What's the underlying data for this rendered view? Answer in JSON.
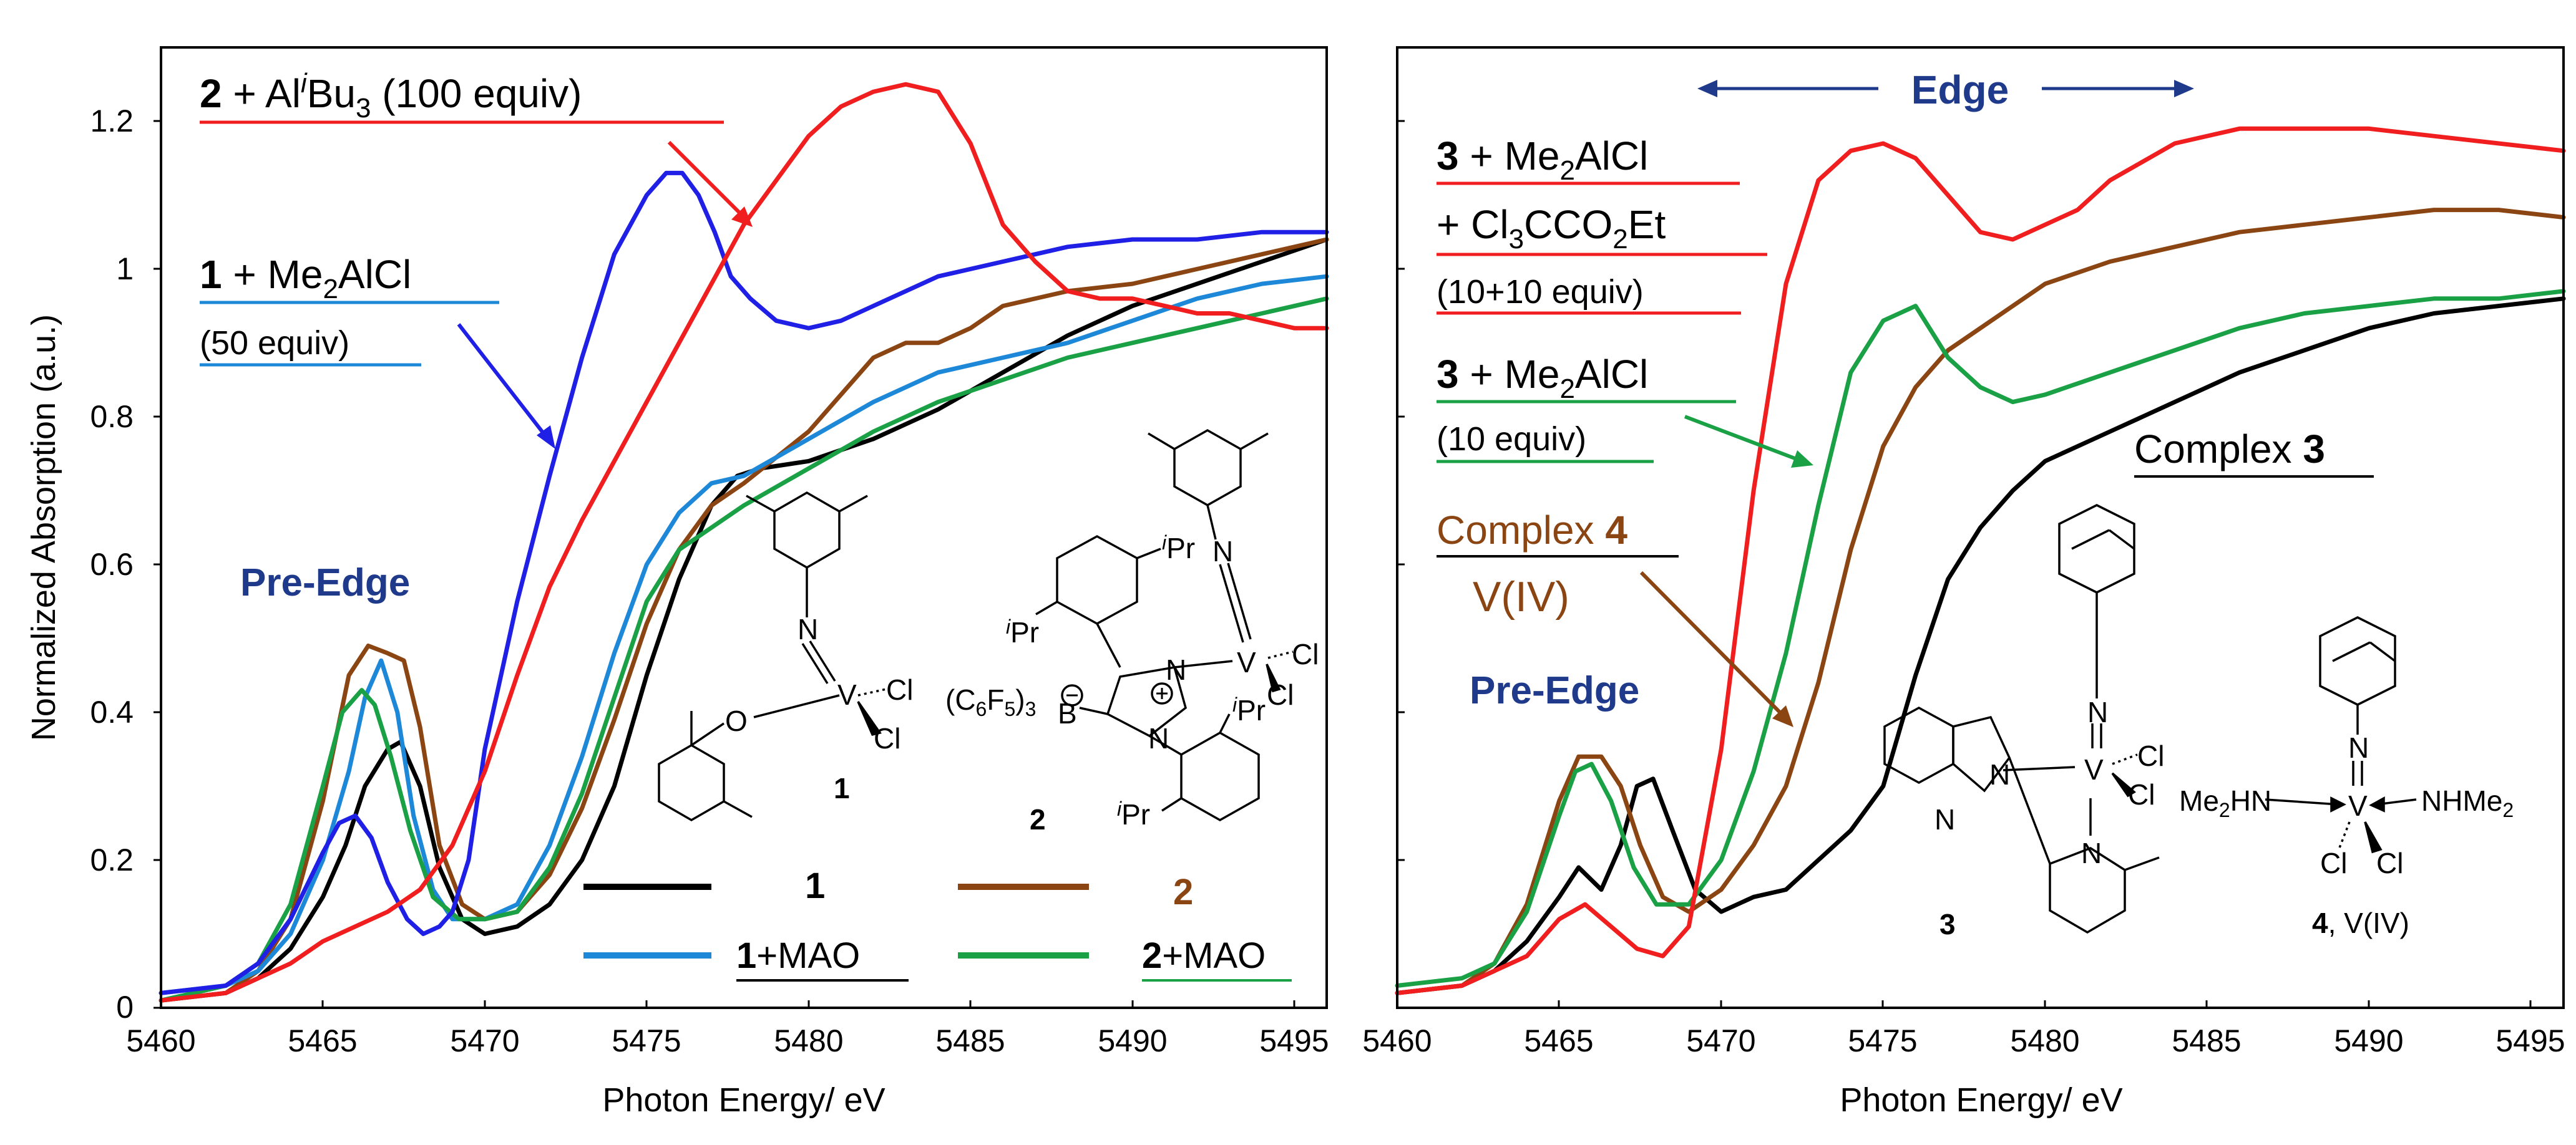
{
  "chart_data": [
    {
      "type": "line",
      "panel": "left",
      "xlabel": "Photon Energy/ eV",
      "ylabel": "Normalized Absorption (a.u.)",
      "xlim": [
        5460,
        5496
      ],
      "ylim": [
        0,
        1.3
      ],
      "xticks": [
        5460,
        5465,
        5470,
        5475,
        5480,
        5485,
        5490,
        5495
      ],
      "yticks": [
        0,
        0.2,
        0.4,
        0.6,
        0.8,
        1,
        1.2
      ],
      "colors": {
        "s1": "#000000",
        "s2": "#8b4513",
        "s1mao": "#1e88d8",
        "s2mao": "#1aa045",
        "s1al": "#1f1fe6",
        "s2al": "#f01e1e",
        "text_blue": "#1f3a8a"
      },
      "series": [
        {
          "name": "1",
          "color": "#000000",
          "x": [
            5460,
            5462,
            5463,
            5464,
            5465,
            5465.7,
            5466.3,
            5467,
            5467.4,
            5468,
            5468.6,
            5469.3,
            5470,
            5471,
            5472,
            5473,
            5474,
            5475,
            5476,
            5477,
            5477.8,
            5478.5,
            5480,
            5482,
            5484,
            5486,
            5488,
            5490,
            5492,
            5494,
            5496
          ],
          "y": [
            0.01,
            0.02,
            0.04,
            0.08,
            0.15,
            0.22,
            0.3,
            0.35,
            0.36,
            0.3,
            0.19,
            0.12,
            0.1,
            0.11,
            0.14,
            0.2,
            0.3,
            0.45,
            0.58,
            0.68,
            0.72,
            0.73,
            0.74,
            0.77,
            0.81,
            0.86,
            0.91,
            0.95,
            0.98,
            1.01,
            1.04
          ]
        },
        {
          "name": "2",
          "color": "#8b4513",
          "x": [
            5460,
            5462,
            5463,
            5464,
            5465,
            5465.8,
            5466.4,
            5467,
            5467.5,
            5468,
            5468.6,
            5469.3,
            5470,
            5471,
            5472,
            5473,
            5474,
            5475,
            5476,
            5477,
            5478,
            5480,
            5482,
            5483,
            5484,
            5485,
            5486,
            5488,
            5490,
            5492,
            5494,
            5496
          ],
          "y": [
            0.01,
            0.02,
            0.05,
            0.12,
            0.28,
            0.45,
            0.49,
            0.48,
            0.47,
            0.38,
            0.22,
            0.14,
            0.12,
            0.13,
            0.18,
            0.27,
            0.39,
            0.52,
            0.62,
            0.68,
            0.71,
            0.78,
            0.88,
            0.9,
            0.9,
            0.92,
            0.95,
            0.97,
            0.98,
            1,
            1.02,
            1.04
          ]
        },
        {
          "name": "1+MAO",
          "color": "#1e88d8",
          "x": [
            5460,
            5462,
            5463,
            5464,
            5465,
            5465.8,
            5466.3,
            5466.8,
            5467.3,
            5467.8,
            5468.4,
            5469,
            5470,
            5471,
            5472,
            5473,
            5474,
            5475,
            5476,
            5477,
            5478,
            5480,
            5482,
            5484,
            5486,
            5488,
            5490,
            5492,
            5494,
            5496
          ],
          "y": [
            0.02,
            0.03,
            0.05,
            0.1,
            0.2,
            0.32,
            0.42,
            0.47,
            0.4,
            0.26,
            0.16,
            0.12,
            0.12,
            0.14,
            0.22,
            0.34,
            0.48,
            0.6,
            0.67,
            0.71,
            0.72,
            0.77,
            0.82,
            0.86,
            0.88,
            0.9,
            0.93,
            0.96,
            0.98,
            0.99
          ]
        },
        {
          "name": "2+MAO",
          "color": "#1aa045",
          "x": [
            5460,
            5462,
            5463,
            5464,
            5465,
            5465.6,
            5466.2,
            5466.6,
            5467.1,
            5467.7,
            5468.4,
            5469.2,
            5470,
            5471,
            5472,
            5473,
            5474,
            5475,
            5476,
            5477,
            5478,
            5480,
            5482,
            5484,
            5486,
            5488,
            5490,
            5492,
            5494,
            5496
          ],
          "y": [
            0.01,
            0.03,
            0.06,
            0.14,
            0.3,
            0.4,
            0.43,
            0.41,
            0.34,
            0.24,
            0.15,
            0.12,
            0.12,
            0.13,
            0.19,
            0.29,
            0.42,
            0.55,
            0.62,
            0.65,
            0.68,
            0.73,
            0.78,
            0.82,
            0.85,
            0.88,
            0.9,
            0.92,
            0.94,
            0.96
          ]
        },
        {
          "name": "1 + Me2AlCl (50 equiv)",
          "color": "#1f1fe6",
          "x": [
            5460,
            5462,
            5463,
            5464,
            5465,
            5465.5,
            5466,
            5466.5,
            5467,
            5467.6,
            5468.1,
            5468.6,
            5469,
            5469.5,
            5470,
            5471,
            5472,
            5473,
            5474,
            5475,
            5475.6,
            5476.1,
            5476.6,
            5477.1,
            5477.6,
            5478.2,
            5479,
            5480,
            5481,
            5482,
            5484,
            5486,
            5488,
            5490,
            5492,
            5494,
            5496
          ],
          "y": [
            0.02,
            0.03,
            0.06,
            0.12,
            0.21,
            0.25,
            0.26,
            0.23,
            0.17,
            0.12,
            0.1,
            0.11,
            0.13,
            0.2,
            0.35,
            0.55,
            0.72,
            0.88,
            1.02,
            1.1,
            1.13,
            1.13,
            1.1,
            1.05,
            0.99,
            0.96,
            0.93,
            0.92,
            0.93,
            0.95,
            0.99,
            1.01,
            1.03,
            1.04,
            1.04,
            1.05,
            1.05
          ]
        },
        {
          "name": "2 + AliBu3 (100 equiv)",
          "color": "#f01e1e",
          "x": [
            5460,
            5462,
            5464,
            5465,
            5466,
            5467,
            5468,
            5469,
            5470,
            5471,
            5472,
            5473,
            5474,
            5475,
            5476,
            5477,
            5478,
            5479,
            5480,
            5480.5,
            5481,
            5482,
            5483,
            5484,
            5485,
            5486,
            5487,
            5488,
            5489,
            5490,
            5491,
            5492,
            5493,
            5494,
            5495,
            5496
          ],
          "y": [
            0.01,
            0.02,
            0.06,
            0.09,
            0.11,
            0.13,
            0.16,
            0.22,
            0.32,
            0.45,
            0.57,
            0.66,
            0.74,
            0.82,
            0.9,
            0.98,
            1.06,
            1.12,
            1.18,
            1.2,
            1.22,
            1.24,
            1.25,
            1.24,
            1.17,
            1.06,
            1.01,
            0.97,
            0.96,
            0.96,
            0.95,
            0.94,
            0.94,
            0.93,
            0.92,
            0.92
          ]
        }
      ],
      "legend": [
        {
          "label_bold": "1",
          "label_rest": "",
          "color": "#000000",
          "text_color": "#000000"
        },
        {
          "label_bold": "2",
          "label_rest": "",
          "color": "#8b4513",
          "text_color": "#8b4513"
        },
        {
          "label_bold": "1",
          "label_rest": "+MAO",
          "color": "#1e88d8",
          "text_color": "#000000"
        },
        {
          "label_bold": "2",
          "label_rest": "+MAO",
          "color": "#1aa045",
          "text_color": "#000000"
        }
      ],
      "annotations": {
        "pre_edge": "Pre-Edge",
        "al_label": {
          "num": "2",
          "plus": " + Al",
          "sup": "i",
          "bu": "Bu",
          "sub": "3",
          "tail": " (100 equiv)"
        },
        "me_label": {
          "num": "1",
          "plus": " + Me",
          "sub": "2",
          "tail": "AlCl",
          "line2": "(50 equiv)"
        }
      },
      "structures": {
        "s1": {
          "atoms": [
            "N",
            "V",
            "O",
            "Cl",
            "Cl"
          ],
          "number": "1"
        },
        "s2": {
          "atoms": [
            "N",
            "V",
            "Cl",
            "Cl",
            "N",
            "N",
            "B",
            "(C",
            "6",
            "F",
            "5",
            ")",
            "3"
          ],
          "ipr": [
            "i",
            "Pr"
          ],
          "number": "2"
        }
      }
    },
    {
      "type": "line",
      "panel": "right",
      "xlabel": "Photon Energy/ eV",
      "ylabel": "",
      "xlim": [
        5460,
        5496
      ],
      "ylim": [
        0,
        1.3
      ],
      "xticks": [
        5460,
        5465,
        5470,
        5475,
        5480,
        5485,
        5490,
        5495
      ],
      "colors": {
        "s3": "#000000",
        "s4": "#8b4513",
        "s3me": "#1aa045",
        "s3cl": "#f01e1e",
        "text_blue": "#1f3a8a",
        "brown": "#8b4513"
      },
      "series": [
        {
          "name": "Complex 3",
          "color": "#000000",
          "x": [
            5460,
            5462,
            5463,
            5464,
            5465,
            5465.6,
            5466.3,
            5466.9,
            5467.4,
            5467.9,
            5468.5,
            5469.2,
            5470,
            5471,
            5472,
            5473,
            5474,
            5475,
            5476,
            5477,
            5478,
            5479,
            5480,
            5482,
            5484,
            5486,
            5488,
            5490,
            5492,
            5494,
            5496
          ],
          "y": [
            0.02,
            0.03,
            0.05,
            0.09,
            0.15,
            0.19,
            0.16,
            0.22,
            0.3,
            0.31,
            0.24,
            0.16,
            0.13,
            0.15,
            0.16,
            0.2,
            0.24,
            0.3,
            0.45,
            0.58,
            0.65,
            0.7,
            0.74,
            0.78,
            0.82,
            0.86,
            0.89,
            0.92,
            0.94,
            0.95,
            0.96
          ]
        },
        {
          "name": "Complex 4",
          "color": "#8b4513",
          "x": [
            5460,
            5462,
            5463,
            5464,
            5465,
            5465.6,
            5466.3,
            5466.9,
            5467.5,
            5468.2,
            5469,
            5470,
            5471,
            5472,
            5473,
            5474,
            5475,
            5476,
            5477,
            5478,
            5479,
            5480,
            5482,
            5484,
            5486,
            5488,
            5490,
            5492,
            5494,
            5496
          ],
          "y": [
            0.02,
            0.03,
            0.06,
            0.14,
            0.28,
            0.34,
            0.34,
            0.3,
            0.22,
            0.15,
            0.13,
            0.16,
            0.22,
            0.3,
            0.44,
            0.62,
            0.76,
            0.84,
            0.89,
            0.92,
            0.95,
            0.98,
            1.01,
            1.03,
            1.05,
            1.06,
            1.07,
            1.08,
            1.08,
            1.07
          ]
        },
        {
          "name": "3 + Me2AlCl (10 equiv)",
          "color": "#1aa045",
          "x": [
            5460,
            5462,
            5463,
            5464,
            5465,
            5465.5,
            5466,
            5466.6,
            5467.3,
            5468,
            5469,
            5470,
            5471,
            5472,
            5473,
            5474,
            5475,
            5476,
            5477,
            5478,
            5479,
            5480,
            5482,
            5484,
            5486,
            5488,
            5490,
            5492,
            5494,
            5496
          ],
          "y": [
            0.03,
            0.04,
            0.06,
            0.13,
            0.26,
            0.32,
            0.33,
            0.28,
            0.19,
            0.14,
            0.14,
            0.2,
            0.32,
            0.48,
            0.68,
            0.86,
            0.93,
            0.95,
            0.88,
            0.84,
            0.82,
            0.83,
            0.86,
            0.89,
            0.92,
            0.94,
            0.95,
            0.96,
            0.96,
            0.97
          ]
        },
        {
          "name": "3 + Me2AlCl + Cl3CCO2Et (10+10 equiv)",
          "color": "#f01e1e",
          "x": [
            5460,
            5462,
            5464,
            5465,
            5465.8,
            5466.6,
            5467.4,
            5468.2,
            5469,
            5470,
            5471,
            5472,
            5473,
            5474,
            5475,
            5476,
            5477,
            5478,
            5479,
            5480,
            5481,
            5482,
            5484,
            5486,
            5488,
            5490,
            5492,
            5494,
            5496
          ],
          "y": [
            0.02,
            0.03,
            0.07,
            0.12,
            0.14,
            0.11,
            0.08,
            0.07,
            0.11,
            0.35,
            0.7,
            0.98,
            1.12,
            1.16,
            1.17,
            1.15,
            1.1,
            1.05,
            1.04,
            1.06,
            1.08,
            1.12,
            1.17,
            1.19,
            1.19,
            1.19,
            1.18,
            1.17,
            1.16
          ]
        }
      ],
      "annotations": {
        "edge": "Edge",
        "pre_edge": "Pre-Edge",
        "cl_label": {
          "num": "3",
          "plus": " + Me",
          "sub2": "2",
          "tail": "AlCl",
          "l2a": "+ Cl",
          "l2sub3": "3",
          "l2b": "CCO",
          "l2sub2": "2",
          "l2c": "Et",
          "line3": "(10+10 equiv)"
        },
        "me_label": {
          "num": "3",
          "plus": " + Me",
          "sub": "2",
          "tail": "AlCl",
          "line2": "(10 equiv)"
        },
        "c4_label": {
          "text": "Complex ",
          "num": "4",
          "line2": "V(IV)"
        },
        "c3_label": {
          "text": "Complex ",
          "num": "3"
        }
      },
      "structures": {
        "s3": {
          "atoms": [
            "N",
            "V",
            "Cl",
            "Cl",
            "N",
            "N",
            "N"
          ],
          "number": "3"
        },
        "s4": {
          "atoms": [
            "N",
            "V",
            "Me",
            "2",
            "HN",
            "NHMe",
            "2",
            "Cl",
            "Cl"
          ],
          "number": "4",
          "suffix": ", V(IV)"
        }
      }
    }
  ]
}
